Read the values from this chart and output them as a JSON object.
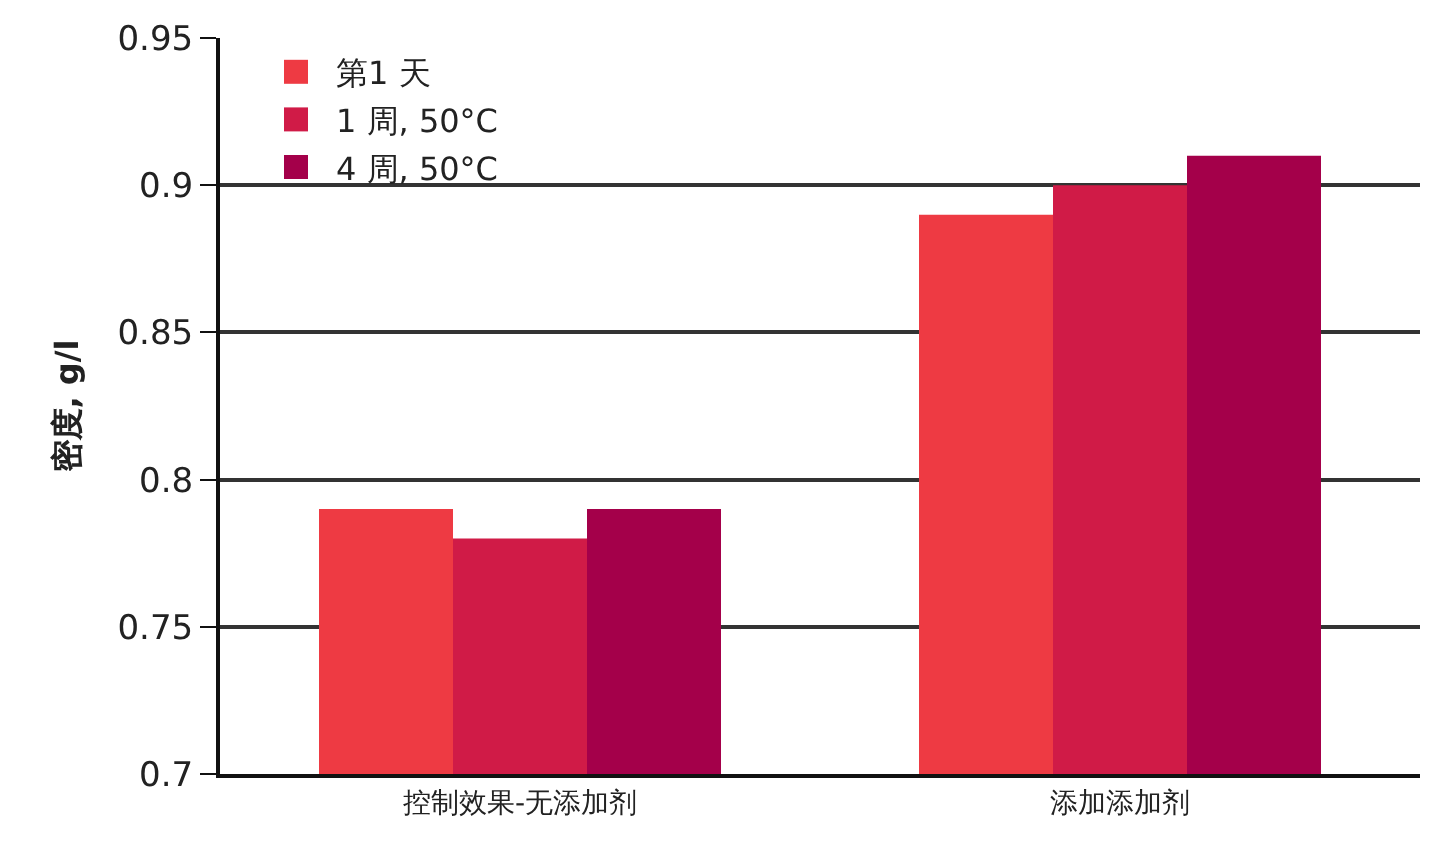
{
  "chart_data": {
    "type": "bar",
    "ylabel": "密度, g/l",
    "categories": [
      "控制效果-无添加剂",
      "添加添加剂"
    ],
    "series": [
      {
        "name": "第1 天",
        "color": "#ee3a43",
        "values": [
          0.79,
          0.89
        ]
      },
      {
        "name": "1 周, 50°C",
        "color": "#d01b47",
        "values": [
          0.78,
          0.9
        ]
      },
      {
        "name": "4 周, 50°C",
        "color": "#a4004a",
        "values": [
          0.79,
          0.91
        ]
      }
    ],
    "ylim": [
      0.7,
      0.95
    ],
    "yticks": [
      0.7,
      0.75,
      0.8,
      0.85,
      0.9,
      0.95
    ],
    "grid": "y",
    "legend": "top left"
  }
}
